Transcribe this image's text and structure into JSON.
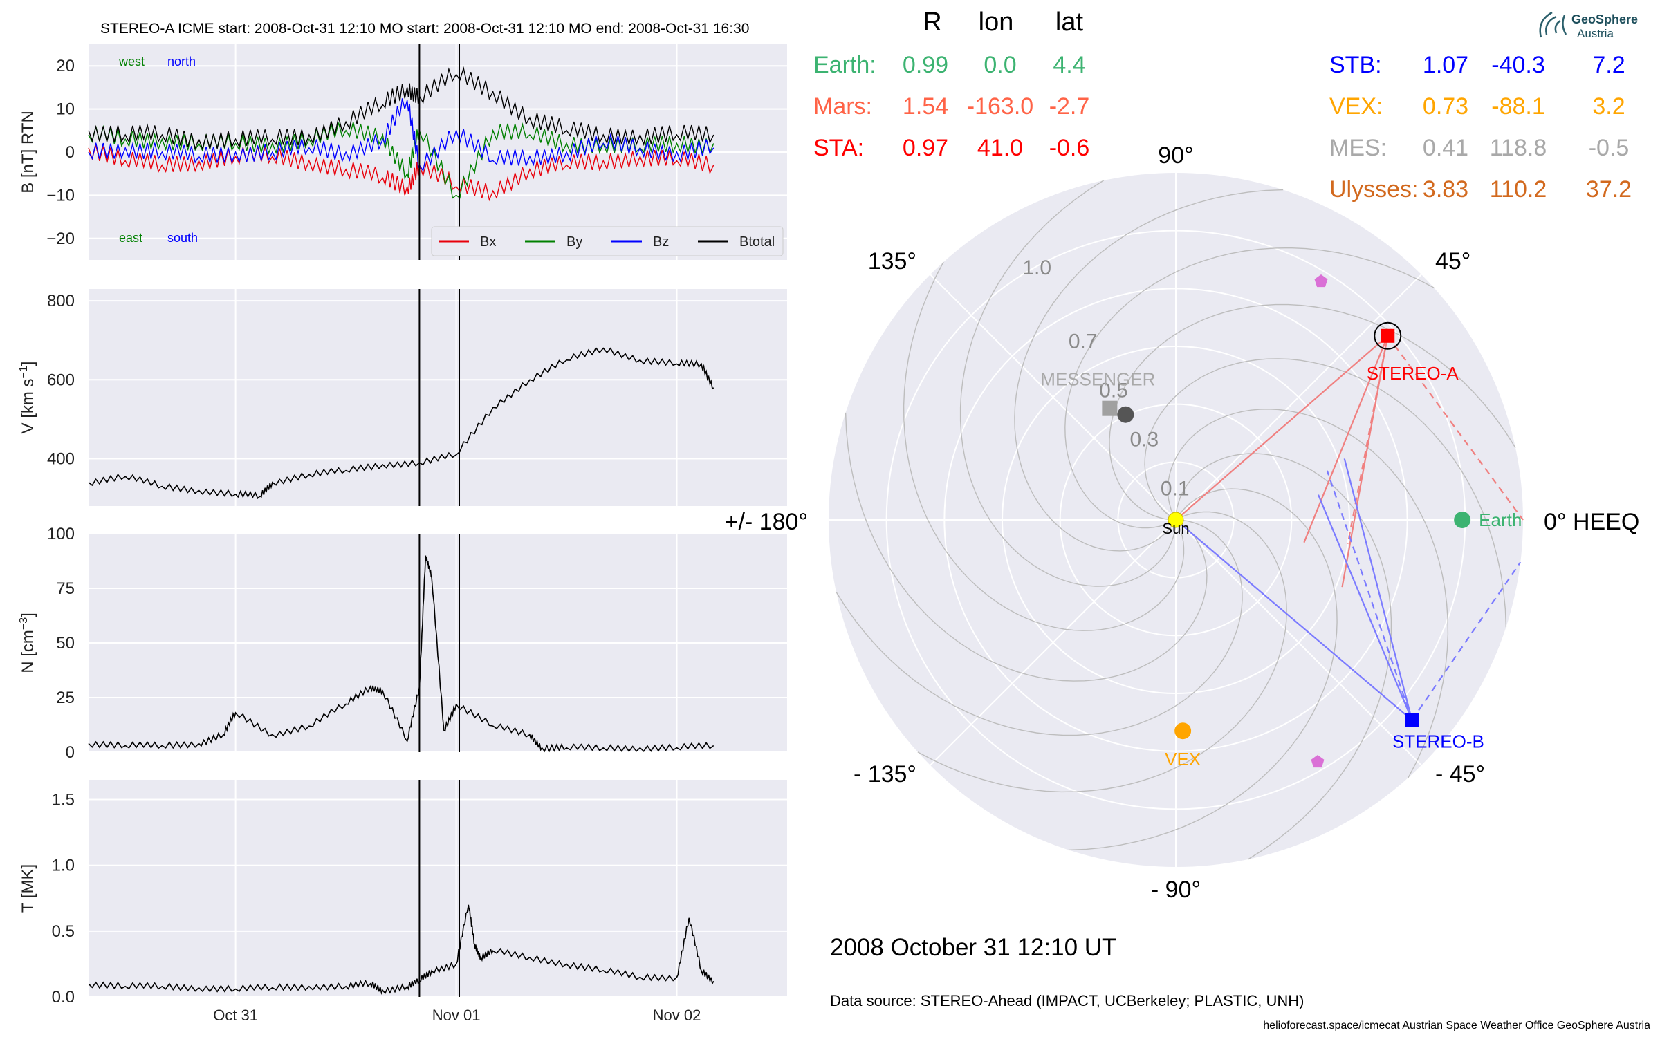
{
  "header": {
    "title": "STEREO-A    ICME start: 2008-Oct-31 12:10   MO start: 2008-Oct-31 12:10   MO end: 2008-Oct-31 16:30"
  },
  "logo": {
    "line1": "GeoSphere",
    "line2": "Austria"
  },
  "colors": {
    "panel_bg": "#eaeaf2",
    "bx": "#e8000b",
    "by": "#008000",
    "bz": "#0000ff",
    "bt": "#000000",
    "earth": "#3cb371",
    "mars": "#ff6347",
    "sta": "#ff0000",
    "stb": "#0000ff",
    "vex": "#ffa500",
    "mes": "#a9a9a9",
    "ulysses": "#d2691e"
  },
  "chart_data": [
    {
      "type": "line",
      "ylabel": "B [nT] RTN",
      "ylim": [
        -25,
        25
      ],
      "yticks": [
        "20",
        "10",
        "0",
        "−10",
        "−20"
      ],
      "series": [
        {
          "name": "Bx",
          "x": [
            0,
            6,
            12,
            18,
            24,
            30,
            36,
            42,
            48,
            52,
            54,
            60,
            66,
            72,
            78,
            84,
            90,
            96,
            102
          ],
          "values": [
            1,
            -2,
            -3,
            -2,
            -1,
            -1,
            -2,
            -4,
            -6,
            -8,
            -3,
            -8,
            -9,
            -4,
            -3,
            -2,
            -1,
            -2,
            -3
          ]
        },
        {
          "name": "By",
          "x": [
            0,
            6,
            12,
            18,
            24,
            30,
            36,
            42,
            48,
            52,
            54,
            60,
            66,
            72,
            78,
            84,
            90,
            96,
            102
          ],
          "values": [
            4,
            3,
            3,
            2,
            2,
            2,
            3,
            5,
            4,
            -5,
            5,
            -10,
            5,
            4,
            2,
            2,
            1,
            2,
            2
          ]
        },
        {
          "name": "Bz",
          "x": [
            0,
            6,
            12,
            18,
            24,
            30,
            36,
            42,
            48,
            52,
            54,
            60,
            66,
            72,
            78,
            84,
            90,
            96,
            102
          ],
          "values": [
            0,
            1,
            0,
            -1,
            0,
            0,
            1,
            0,
            3,
            12,
            -3,
            5,
            -2,
            -1,
            0,
            2,
            1,
            0,
            1
          ]
        },
        {
          "name": "Btotal",
          "x": [
            0,
            6,
            12,
            18,
            24,
            30,
            36,
            42,
            48,
            52,
            54,
            60,
            66,
            72,
            78,
            84,
            90,
            96,
            102
          ],
          "values": [
            5,
            4,
            4,
            3,
            3,
            3,
            4,
            7,
            11,
            15,
            13,
            18,
            14,
            8,
            5,
            4,
            4,
            4,
            4
          ]
        }
      ],
      "labels": [
        "west",
        "north",
        "east",
        "south"
      ]
    },
    {
      "type": "line",
      "ylabel": "V [km s",
      "ylabel_sup": "−1",
      "ylim": [
        280,
        830
      ],
      "yticks": [
        "800",
        "600",
        "400"
      ],
      "series": [
        {
          "x": [
            0,
            6,
            12,
            18,
            24,
            28,
            30,
            36,
            42,
            48,
            54,
            60,
            66,
            72,
            78,
            84,
            90,
            96,
            100,
            102
          ],
          "values": [
            340,
            355,
            330,
            320,
            310,
            305,
            340,
            360,
            370,
            385,
            390,
            410,
            530,
            600,
            650,
            680,
            650,
            640,
            640,
            580
          ]
        }
      ]
    },
    {
      "type": "line",
      "ylabel": "N [cm",
      "ylabel_sup": "−3",
      "ylim": [
        0,
        100
      ],
      "yticks": [
        "100",
        "75",
        "50",
        "25",
        "0"
      ],
      "series": [
        {
          "x": [
            0,
            6,
            12,
            18,
            22,
            24,
            30,
            36,
            42,
            46,
            48,
            52,
            54,
            55,
            56,
            58,
            60,
            66,
            72,
            74,
            78,
            84,
            90,
            96,
            102
          ],
          "values": [
            4,
            3,
            3,
            4,
            8,
            18,
            8,
            12,
            22,
            30,
            28,
            5,
            30,
            90,
            80,
            10,
            22,
            12,
            8,
            2,
            2,
            2,
            2,
            2,
            3
          ]
        }
      ]
    },
    {
      "type": "line",
      "ylabel": "T [MK]",
      "ylim": [
        0,
        1.65
      ],
      "yticks": [
        "1.5",
        "1.0",
        "0.5",
        "0.0"
      ],
      "series": [
        {
          "x": [
            0,
            6,
            12,
            18,
            24,
            30,
            36,
            42,
            46,
            48,
            52,
            54,
            56,
            60,
            62,
            63,
            64,
            66,
            72,
            78,
            84,
            90,
            96,
            98,
            100,
            102
          ],
          "values": [
            0.1,
            0.08,
            0.08,
            0.07,
            0.06,
            0.07,
            0.08,
            0.08,
            0.1,
            0.05,
            0.08,
            0.12,
            0.2,
            0.25,
            0.7,
            0.4,
            0.3,
            0.35,
            0.3,
            0.25,
            0.2,
            0.15,
            0.15,
            0.6,
            0.2,
            0.12
          ]
        }
      ]
    },
    {
      "type": "polar",
      "angle_labels": [
        "90°",
        "45°",
        "0° HEEQ",
        "- 45°",
        "- 90°",
        "- 135°",
        "+/- 180°",
        "135°"
      ],
      "radial_labels": [
        "1.0",
        "0.7",
        "0.5",
        "0.3",
        "0.1"
      ],
      "bodies": [
        {
          "name": "STEREO-A",
          "r": 0.97,
          "lon": 41.0
        },
        {
          "name": "STEREO-B",
          "r": 1.07,
          "lon": -40.3
        },
        {
          "name": "Earth",
          "r": 0.99,
          "lon": 0.0
        },
        {
          "name": "VEX",
          "r": 0.73,
          "lon": -88.1
        },
        {
          "name": "MESSENGER",
          "r": 0.41,
          "lon": 118.8
        },
        {
          "name": "Sun",
          "r": 0.0,
          "lon": 0.0
        }
      ]
    }
  ],
  "x_axis": {
    "ticks": [
      "Oct 31",
      "Nov 01",
      "Nov 02"
    ],
    "tick_x": [
      24,
      60,
      96
    ],
    "xlim": [
      0,
      114
    ]
  },
  "events": {
    "lines_x": [
      54,
      60.5
    ]
  },
  "legend": [
    "Bx",
    "By",
    "Bz",
    "Btotal"
  ],
  "positions": {
    "header": [
      "R",
      "lon",
      "lat"
    ],
    "left": [
      {
        "name": "Earth:",
        "r": "0.99",
        "lon": "0.0",
        "lat": "4.4"
      },
      {
        "name": "Mars:",
        "r": "1.54",
        "lon": "-163.0",
        "lat": "-2.7"
      },
      {
        "name": "STA:",
        "r": "0.97",
        "lon": "41.0",
        "lat": "-0.6"
      }
    ],
    "right": [
      {
        "name": "STB:",
        "r": "1.07",
        "lon": "-40.3",
        "lat": "7.2"
      },
      {
        "name": "VEX:",
        "r": "0.73",
        "lon": "-88.1",
        "lat": "3.2"
      },
      {
        "name": "MES:",
        "r": "0.41",
        "lon": "118.8",
        "lat": "-0.5"
      },
      {
        "name": "Ulysses:",
        "r": "3.83",
        "lon": "110.2",
        "lat": "37.2"
      }
    ]
  },
  "date_text": "2008 October 31  12:10 UT",
  "data_source": "Data source: STEREO-Ahead (IMPACT, UCBerkeley; PLASTIC, UNH)",
  "footer": "helioforecast.space/icmecat   Austrian Space Weather Office   GeoSphere Austria"
}
